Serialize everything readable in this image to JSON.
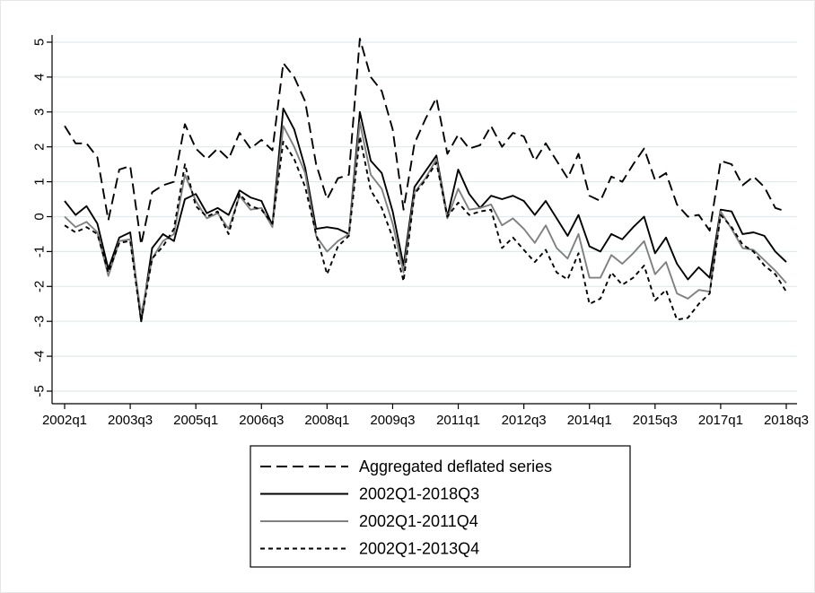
{
  "chart_data": {
    "type": "line",
    "title": "",
    "xlabel": "",
    "ylabel": "",
    "ylim": [
      -5,
      5
    ],
    "y_ticks": [
      5,
      4,
      3,
      2,
      1,
      0,
      -1,
      -2,
      -3,
      -4,
      -5
    ],
    "y_tick_labels": [
      "5",
      "4",
      "3",
      "2",
      "1",
      "0",
      "-1",
      "-2",
      "-3",
      "-4",
      "-5"
    ],
    "x_ticks": [
      "2002q1",
      "2003q3",
      "2005q1",
      "2006q3",
      "2008q1",
      "2009q3",
      "2011q1",
      "2012q3",
      "2014q1",
      "2015q3",
      "2017q1",
      "2018q3"
    ],
    "grid": true,
    "legend_position": "bottom",
    "x": [
      "2002q1",
      "2002q2",
      "2002q3",
      "2002q4",
      "2003q1",
      "2003q2",
      "2003q3",
      "2003q4",
      "2004q1",
      "2004q2",
      "2004q3",
      "2004q4",
      "2005q1",
      "2005q2",
      "2005q3",
      "2005q4",
      "2006q1",
      "2006q2",
      "2006q3",
      "2006q4",
      "2007q1",
      "2007q2",
      "2007q3",
      "2007q4",
      "2008q1",
      "2008q2",
      "2008q3",
      "2008q4",
      "2009q1",
      "2009q2",
      "2009q3",
      "2009q4",
      "2010q1",
      "2010q2",
      "2010q3",
      "2010q4",
      "2011q1",
      "2011q2",
      "2011q3",
      "2011q4",
      "2012q1",
      "2012q2",
      "2012q3",
      "2012q4",
      "2013q1",
      "2013q2",
      "2013q3",
      "2013q4",
      "2014q1",
      "2014q2",
      "2014q3",
      "2014q4",
      "2015q1",
      "2015q2",
      "2015q3",
      "2015q4",
      "2016q1",
      "2016q2",
      "2016q3",
      "2016q4",
      "2017q1",
      "2017q2",
      "2017q3",
      "2017q4",
      "2018q1",
      "2018q2",
      "2018q3"
    ],
    "series": [
      {
        "name": "Aggregated deflated series",
        "color": "#000000",
        "dash": "long-dash",
        "values": [
          2.6,
          2.1,
          2.1,
          1.7,
          -0.1,
          1.35,
          1.45,
          -0.8,
          0.7,
          0.9,
          1.0,
          2.65,
          1.95,
          1.65,
          1.95,
          1.65,
          2.4,
          1.95,
          2.2,
          1.9,
          4.4,
          4.0,
          3.3,
          1.5,
          0.5,
          1.1,
          1.2,
          5.1,
          4.0,
          3.6,
          2.5,
          0.2,
          2.1,
          2.8,
          3.4,
          1.8,
          2.35,
          1.95,
          2.05,
          2.6,
          2.0,
          2.4,
          2.3,
          1.6,
          2.1,
          1.6,
          1.1,
          1.8,
          0.6,
          0.45,
          1.15,
          1.0,
          1.5,
          1.95,
          1.05,
          1.25,
          0.35,
          0.0,
          0.05,
          -0.4,
          1.6,
          1.5,
          0.9,
          1.15,
          0.85,
          0.25,
          0.15
        ]
      },
      {
        "name": "2002Q1-2018Q3",
        "color": "#000000",
        "dash": "solid",
        "values": [
          0.45,
          0.05,
          0.3,
          -0.2,
          -1.5,
          -0.6,
          -0.45,
          -3.0,
          -0.9,
          -0.5,
          -0.7,
          0.5,
          0.65,
          0.1,
          0.25,
          0.05,
          0.75,
          0.55,
          0.45,
          -0.25,
          3.1,
          2.5,
          1.4,
          -0.35,
          -0.3,
          -0.35,
          -0.5,
          3.0,
          1.6,
          1.25,
          0.15,
          -1.4,
          0.85,
          1.3,
          1.75,
          0.0,
          1.35,
          0.65,
          0.25,
          0.6,
          0.5,
          0.6,
          0.45,
          0.05,
          0.45,
          -0.05,
          -0.55,
          0.05,
          -0.85,
          -1.0,
          -0.5,
          -0.65,
          -0.3,
          0.0,
          -1.05,
          -0.6,
          -1.35,
          -1.8,
          -1.45,
          -1.75,
          0.2,
          0.15,
          -0.5,
          -0.45,
          -0.55,
          -1.0,
          -1.3
        ]
      },
      {
        "name": "2002Q1-2011Q4",
        "color": "#808080",
        "dash": "solid",
        "values": [
          0.0,
          -0.3,
          -0.15,
          -0.45,
          -1.7,
          -0.7,
          -0.65,
          -2.8,
          -1.2,
          -0.7,
          -0.5,
          1.2,
          0.45,
          -0.05,
          0.1,
          -0.35,
          0.6,
          0.2,
          0.25,
          -0.3,
          2.6,
          2.0,
          1.25,
          -0.55,
          -1.0,
          -0.7,
          -0.5,
          2.7,
          1.2,
          0.8,
          -0.2,
          -1.6,
          0.7,
          1.1,
          1.65,
          -0.05,
          0.8,
          0.2,
          0.25,
          0.35,
          -0.25,
          -0.05,
          -0.35,
          -0.75,
          -0.25,
          -0.9,
          -1.2,
          -0.5,
          -1.75,
          -1.75,
          -1.1,
          -1.35,
          -1.05,
          -0.7,
          -1.65,
          -1.3,
          -2.2,
          -2.35,
          -2.1,
          -2.15,
          0.15,
          -0.35,
          -0.9,
          -0.95,
          -1.25,
          -1.55,
          -1.9
        ]
      },
      {
        "name": "2002Q1-2013Q4",
        "color": "#000000",
        "dash": "short-dash",
        "values": [
          -0.25,
          -0.45,
          -0.3,
          -0.5,
          -1.6,
          -0.75,
          -0.7,
          -3.0,
          -1.2,
          -0.85,
          -0.35,
          1.5,
          0.3,
          0.0,
          0.15,
          -0.5,
          0.65,
          0.3,
          0.2,
          -0.2,
          2.15,
          1.65,
          0.85,
          -0.5,
          -1.65,
          -0.85,
          -0.55,
          2.3,
          0.75,
          0.25,
          -0.6,
          -1.85,
          0.65,
          1.05,
          1.55,
          0.0,
          0.4,
          0.05,
          0.15,
          0.2,
          -0.9,
          -0.6,
          -0.95,
          -1.3,
          -0.95,
          -1.6,
          -1.8,
          -1.05,
          -2.5,
          -2.35,
          -1.6,
          -1.95,
          -1.75,
          -1.4,
          -2.4,
          -2.1,
          -2.95,
          -2.9,
          -2.5,
          -2.2,
          0.05,
          -0.3,
          -0.8,
          -1.0,
          -1.4,
          -1.65,
          -2.15
        ]
      }
    ]
  }
}
